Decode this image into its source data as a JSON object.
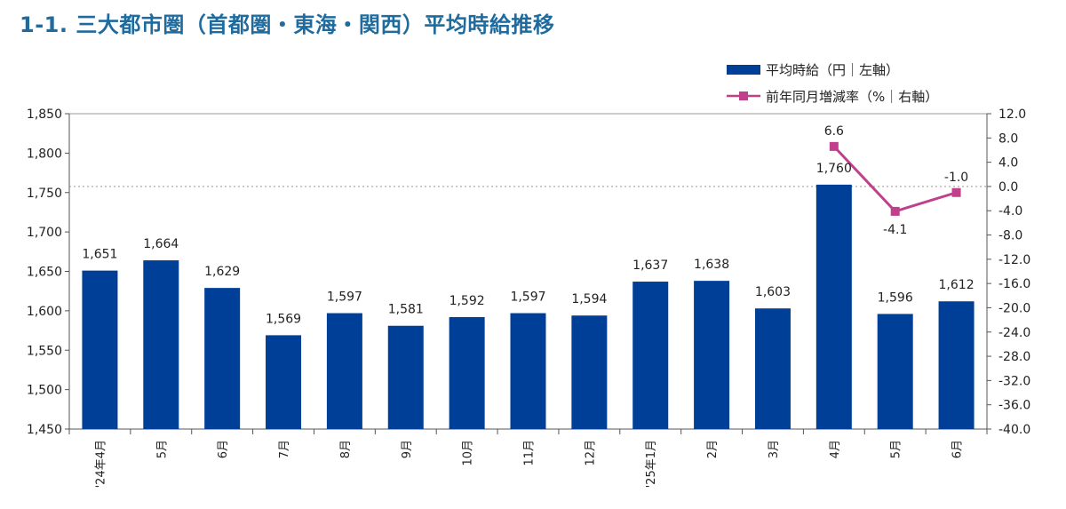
{
  "title": "1-1. 三大都市圏（首都圏・東海・関西）平均時給推移",
  "chart_data": {
    "type": "bar",
    "categories": [
      "'24年4月",
      "5月",
      "6月",
      "7月",
      "8月",
      "9月",
      "10月",
      "11月",
      "12月",
      "'25年1月",
      "2月",
      "3月",
      "4月",
      "5月",
      "6月"
    ],
    "series": [
      {
        "name": "平均時給（円｜左軸）",
        "type": "bar",
        "axis": "left",
        "color": "#003f98",
        "values": [
          1651,
          1664,
          1629,
          1569,
          1597,
          1581,
          1592,
          1597,
          1594,
          1637,
          1638,
          1603,
          1760,
          1596,
          1612
        ],
        "labels": [
          "1,651",
          "1,664",
          "1,629",
          "1,569",
          "1,597",
          "1,581",
          "1,592",
          "1,597",
          "1,594",
          "1,637",
          "1,638",
          "1,603",
          "1,760",
          "1,596",
          "1,612"
        ]
      },
      {
        "name": "前年同月増減率（%｜右軸）",
        "type": "line",
        "axis": "right",
        "color": "#c0408c",
        "values": [
          null,
          null,
          null,
          null,
          null,
          null,
          null,
          null,
          null,
          null,
          null,
          null,
          6.6,
          -4.1,
          -1.0
        ],
        "labels": [
          "",
          "",
          "",
          "",
          "",
          "",
          "",
          "",
          "",
          "",
          "",
          "",
          "6.6",
          "-4.1",
          "-1.0"
        ]
      }
    ],
    "y_left": {
      "min": 1450,
      "max": 1850,
      "ticks": [
        1850,
        1800,
        1750,
        1700,
        1650,
        1600,
        1550,
        1500,
        1450
      ],
      "tick_labels": [
        "1,850",
        "1,800",
        "1,750",
        "1,700",
        "1,650",
        "1,600",
        "1,550",
        "1,500",
        "1,450"
      ]
    },
    "y_right": {
      "min": -40,
      "max": 12,
      "ticks": [
        12,
        8,
        4,
        0,
        -4,
        -8,
        -12,
        -16,
        -20,
        -24,
        -28,
        -32,
        -36,
        -40
      ],
      "tick_labels": [
        "12.0",
        "8.0",
        "4.0",
        "0.0",
        "-4.0",
        "-8.0",
        "-12.0",
        "-16.0",
        "-20.0",
        "-24.0",
        "-28.0",
        "-32.0",
        "-36.0",
        "-40.0"
      ]
    },
    "reference_line": {
      "axis": "right",
      "value": 0,
      "style": "dotted"
    },
    "legend_position": "top-right",
    "grid": false
  }
}
